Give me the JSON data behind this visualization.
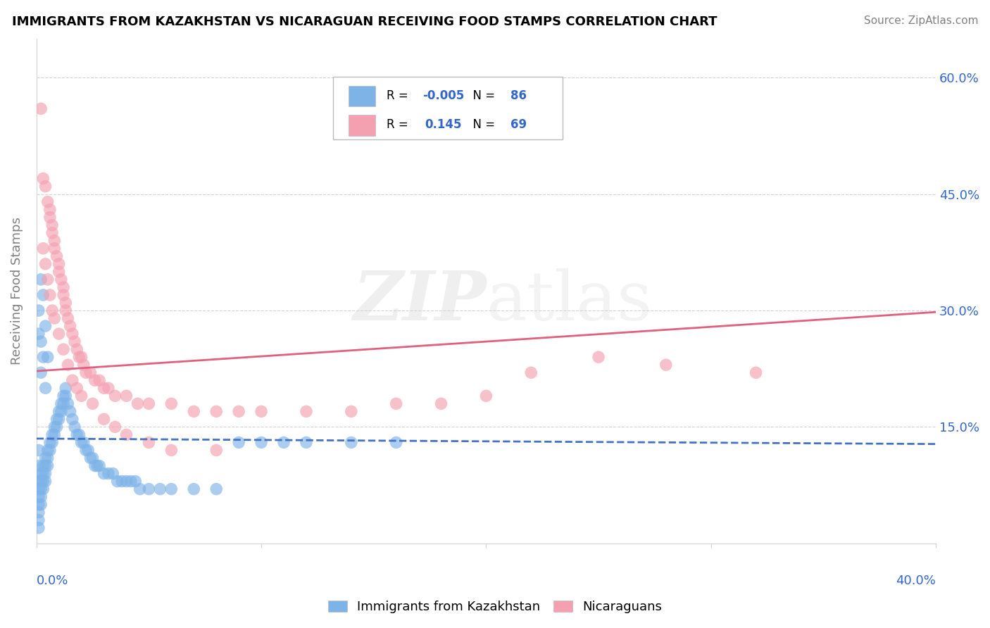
{
  "title": "IMMIGRANTS FROM KAZAKHSTAN VS NICARAGUAN RECEIVING FOOD STAMPS CORRELATION CHART",
  "source": "Source: ZipAtlas.com",
  "xlabel_blue": "Immigrants from Kazakhstan",
  "xlabel_pink": "Nicaraguans",
  "ylabel": "Receiving Food Stamps",
  "legend_blue_R": "-0.005",
  "legend_blue_N": "86",
  "legend_pink_R": "0.145",
  "legend_pink_N": "69",
  "xlim": [
    0.0,
    0.4
  ],
  "ylim": [
    0.0,
    0.65
  ],
  "yticks": [
    0.15,
    0.3,
    0.45,
    0.6
  ],
  "ytick_labels": [
    "15.0%",
    "30.0%",
    "45.0%",
    "60.0%"
  ],
  "x_left_label": "0.0%",
  "x_right_label": "40.0%",
  "color_blue": "#7EB3E8",
  "color_pink": "#F4A0B0",
  "color_blue_line": "#4472C4",
  "color_pink_line": "#E06080",
  "color_tick": "#3366CC",
  "watermark_text": "ZIPAtlas",
  "blue_x": [
    0.001,
    0.001,
    0.001,
    0.001,
    0.001,
    0.001,
    0.001,
    0.001,
    0.001,
    0.002,
    0.002,
    0.002,
    0.002,
    0.002,
    0.003,
    0.003,
    0.003,
    0.003,
    0.004,
    0.004,
    0.004,
    0.004,
    0.005,
    0.005,
    0.005,
    0.006,
    0.006,
    0.007,
    0.007,
    0.008,
    0.008,
    0.009,
    0.009,
    0.01,
    0.01,
    0.011,
    0.011,
    0.012,
    0.012,
    0.013,
    0.013,
    0.014,
    0.015,
    0.016,
    0.017,
    0.018,
    0.019,
    0.02,
    0.021,
    0.022,
    0.023,
    0.024,
    0.025,
    0.026,
    0.027,
    0.028,
    0.03,
    0.032,
    0.034,
    0.036,
    0.038,
    0.04,
    0.042,
    0.044,
    0.046,
    0.05,
    0.055,
    0.06,
    0.07,
    0.08,
    0.09,
    0.1,
    0.11,
    0.12,
    0.14,
    0.16,
    0.001,
    0.001,
    0.002,
    0.002,
    0.002,
    0.003,
    0.003,
    0.004,
    0.004,
    0.005
  ],
  "blue_y": [
    0.08,
    0.07,
    0.06,
    0.05,
    0.04,
    0.03,
    0.02,
    0.12,
    0.1,
    0.09,
    0.08,
    0.07,
    0.06,
    0.05,
    0.1,
    0.09,
    0.08,
    0.07,
    0.11,
    0.1,
    0.09,
    0.08,
    0.12,
    0.11,
    0.1,
    0.13,
    0.12,
    0.14,
    0.13,
    0.15,
    0.14,
    0.16,
    0.15,
    0.17,
    0.16,
    0.18,
    0.17,
    0.19,
    0.18,
    0.2,
    0.19,
    0.18,
    0.17,
    0.16,
    0.15,
    0.14,
    0.14,
    0.13,
    0.13,
    0.12,
    0.12,
    0.11,
    0.11,
    0.1,
    0.1,
    0.1,
    0.09,
    0.09,
    0.09,
    0.08,
    0.08,
    0.08,
    0.08,
    0.08,
    0.07,
    0.07,
    0.07,
    0.07,
    0.07,
    0.07,
    0.13,
    0.13,
    0.13,
    0.13,
    0.13,
    0.13,
    0.3,
    0.27,
    0.34,
    0.26,
    0.22,
    0.32,
    0.24,
    0.28,
    0.2,
    0.24
  ],
  "pink_x": [
    0.002,
    0.003,
    0.004,
    0.005,
    0.006,
    0.006,
    0.007,
    0.007,
    0.008,
    0.008,
    0.009,
    0.01,
    0.01,
    0.011,
    0.012,
    0.012,
    0.013,
    0.013,
    0.014,
    0.015,
    0.016,
    0.017,
    0.018,
    0.019,
    0.02,
    0.021,
    0.022,
    0.024,
    0.026,
    0.028,
    0.03,
    0.032,
    0.035,
    0.04,
    0.045,
    0.05,
    0.06,
    0.07,
    0.08,
    0.09,
    0.1,
    0.12,
    0.14,
    0.16,
    0.18,
    0.2,
    0.22,
    0.25,
    0.28,
    0.32,
    0.003,
    0.004,
    0.005,
    0.006,
    0.007,
    0.008,
    0.01,
    0.012,
    0.014,
    0.016,
    0.018,
    0.02,
    0.025,
    0.03,
    0.035,
    0.04,
    0.05,
    0.06,
    0.08
  ],
  "pink_y": [
    0.56,
    0.47,
    0.46,
    0.44,
    0.43,
    0.42,
    0.41,
    0.4,
    0.39,
    0.38,
    0.37,
    0.36,
    0.35,
    0.34,
    0.33,
    0.32,
    0.31,
    0.3,
    0.29,
    0.28,
    0.27,
    0.26,
    0.25,
    0.24,
    0.24,
    0.23,
    0.22,
    0.22,
    0.21,
    0.21,
    0.2,
    0.2,
    0.19,
    0.19,
    0.18,
    0.18,
    0.18,
    0.17,
    0.17,
    0.17,
    0.17,
    0.17,
    0.17,
    0.18,
    0.18,
    0.19,
    0.22,
    0.24,
    0.23,
    0.22,
    0.38,
    0.36,
    0.34,
    0.32,
    0.3,
    0.29,
    0.27,
    0.25,
    0.23,
    0.21,
    0.2,
    0.19,
    0.18,
    0.16,
    0.15,
    0.14,
    0.13,
    0.12,
    0.12
  ],
  "blue_trend_start": 0.135,
  "blue_trend_end": 0.128,
  "pink_trend_start": 0.222,
  "pink_trend_end": 0.298
}
